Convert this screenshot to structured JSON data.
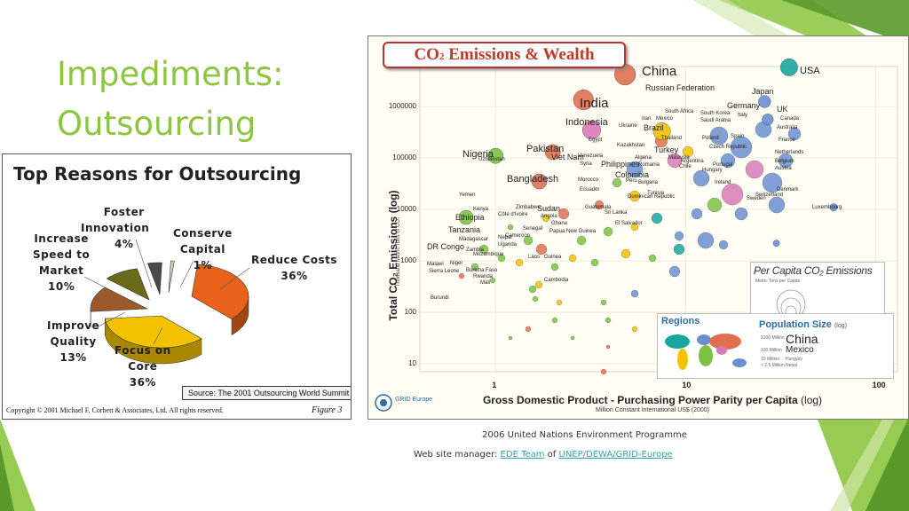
{
  "slide": {
    "title_lines": [
      "Impediments:",
      "Outsourcing"
    ],
    "accent_color": "#8cc63f",
    "accent_dark": "#5a9a2a"
  },
  "pie_figure": {
    "title": "Top Reasons for Outsourcing",
    "source": "Source: The 2001 Outsourcing World Summit",
    "copyright": "Copyright © 2001 Michael F. Corbett & Associates, Ltd.  All rights reserved.",
    "figure_label": "Figure 3",
    "chart_data": {
      "type": "pie",
      "title": "Top Reasons for Outsourcing",
      "slices": [
        {
          "label": "Reduce Costs",
          "value": 36,
          "color": "#e8621a"
        },
        {
          "label": "Focus on Core",
          "value": 36,
          "color": "#f2c200"
        },
        {
          "label": "Improve Quality",
          "value": 13,
          "color": "#9a5a2a"
        },
        {
          "label": "Increase Speed to Market",
          "value": 10,
          "color": "#6b6a18"
        },
        {
          "label": "Foster Innovation",
          "value": 4,
          "color": "#4a4a4a"
        },
        {
          "label": "Conserve Capital",
          "value": 1,
          "color": "#d9d0b8"
        }
      ]
    },
    "labels": {
      "foster": [
        "Foster",
        "Innovation",
        "4%"
      ],
      "conserve": [
        "Conserve",
        "Capital",
        "1%"
      ],
      "speed": [
        "Increase",
        "Speed to",
        "Market",
        "10%"
      ],
      "reduce": [
        "Reduce Costs",
        "36%"
      ],
      "quality": [
        "Improve",
        "Quality",
        "13%"
      ],
      "focus": [
        "Focus on",
        "Core",
        "36%"
      ]
    }
  },
  "co2_figure": {
    "title_prefix": "CO",
    "title_sub": "2",
    "title_suffix": " Emissions & Wealth",
    "y_axis_title": "Total CO₂ Emissions (log)",
    "y_axis_subtitle": "Thousand Metric Tons of CO₂",
    "x_axis_title": "Gross Domestic Product - Purchasing Power Parity per Capita",
    "x_axis_title_suffix": "(log)",
    "x_axis_subtitle": "Million Constant International US$ (2000)",
    "per_capita_title": "Per Capita CO₂ Emissions",
    "per_capita_sub": "Metric Tons per Capita",
    "regions_title": "Regions",
    "population_title": "Population Size",
    "population_suffix": "(log)",
    "population_labels": [
      "China",
      "Mexico"
    ],
    "population_small": [
      "1300 Million",
      "100 Million",
      "10 Million",
      "< 2.5 Million"
    ],
    "population_small_names": [
      "Hungary",
      "Nepal"
    ],
    "chart_data": {
      "type": "scatter",
      "title": "CO₂ Emissions & Wealth",
      "xlabel": "Gross Domestic Product - Purchasing Power Parity per Capita (log)",
      "ylabel": "Total CO₂ Emissions (log)",
      "x_scale": "log",
      "y_scale": "log",
      "xlim": [
        0.4,
        130
      ],
      "ylim": [
        7,
        6000000
      ],
      "x_ticks": [
        1,
        10,
        100
      ],
      "y_ticks": [
        10,
        100,
        1000,
        10000,
        100000,
        1000000
      ],
      "y_tick_labels": [
        "10",
        "100",
        "1000",
        "10000",
        "100000",
        "1000000"
      ],
      "x_tick_labels": [
        "1",
        "10",
        "100"
      ],
      "grid": true,
      "points": [
        {
          "label": "USA",
          "x": 35,
          "y": 5800000,
          "size": 14,
          "color": "#1aa6a0"
        },
        {
          "label": "China",
          "x": 4.8,
          "y": 4200000,
          "size": 18,
          "color": "#e07050"
        },
        {
          "label": "India",
          "x": 2.9,
          "y": 1350000,
          "size": 17,
          "color": "#e07050"
        },
        {
          "label": "Russian Federation",
          "x": 9.5,
          "y": 1600000,
          "size": 0,
          "color": "#6a8fd0"
        },
        {
          "label": "Japan",
          "x": 26,
          "y": 1250000,
          "size": 9,
          "color": "#6a8fd0"
        },
        {
          "label": "Germany",
          "x": 25,
          "y": 860000,
          "size": 0,
          "color": "#6a8fd0"
        },
        {
          "label": "UK",
          "x": 27,
          "y": 560000,
          "size": 8,
          "color": "#6a8fd0"
        },
        {
          "label": "Canada",
          "x": 29,
          "y": 520000,
          "size": 0,
          "color": "#6a8fd0"
        },
        {
          "label": "Indonesia",
          "x": 3.2,
          "y": 350000,
          "size": 15,
          "color": "#d97ab8"
        },
        {
          "label": "Brazil",
          "x": 7.5,
          "y": 330000,
          "size": 14,
          "color": "#f2c200"
        },
        {
          "label": "Nigeria",
          "x": 1.0,
          "y": 110000,
          "size": 12,
          "color": "#7cc242"
        },
        {
          "label": "Pakistan",
          "x": 2.0,
          "y": 130000,
          "size": 12,
          "color": "#e07050"
        },
        {
          "label": "Bangladesh",
          "x": 1.7,
          "y": 35000,
          "size": 12,
          "color": "#e07050"
        },
        {
          "label": "Ethiopia",
          "x": 0.7,
          "y": 7000,
          "size": 11,
          "color": "#7cc242"
        },
        {
          "label": "Luxembourg",
          "x": 60,
          "y": 11000,
          "size": 4,
          "color": "#6a8fd0"
        },
        {
          "label": "Iceland",
          "x": 30,
          "y": 2200,
          "size": 3,
          "color": "#6a8fd0"
        }
      ]
    },
    "labels": [
      {
        "text": "China",
        "size": "l"
      },
      {
        "text": "USA",
        "size": "m"
      },
      {
        "text": "Russian Federation",
        "size": "s"
      },
      {
        "text": "Japan",
        "size": "s"
      },
      {
        "text": "India",
        "size": "l"
      },
      {
        "text": "Germany",
        "size": "s"
      },
      {
        "text": "UK",
        "size": "s"
      },
      {
        "text": "South Africa",
        "size": "xs"
      },
      {
        "text": "South Korea",
        "size": "xs"
      },
      {
        "text": "Italy",
        "size": "xs"
      },
      {
        "text": "Canada",
        "size": "xs"
      },
      {
        "text": "Saudi Arabia",
        "size": "xs"
      },
      {
        "text": "Iran",
        "size": "xs"
      },
      {
        "text": "Mexico",
        "size": "xs"
      },
      {
        "text": "Indonesia",
        "size": "m"
      },
      {
        "text": "Ukraine",
        "size": "xs"
      },
      {
        "text": "Brazil",
        "size": "s"
      },
      {
        "text": "Spain",
        "size": "xs"
      },
      {
        "text": "Australia",
        "size": "xs"
      },
      {
        "text": "France",
        "size": "xs"
      },
      {
        "text": "Egypt",
        "size": "xs"
      },
      {
        "text": "Thailand",
        "size": "xs"
      },
      {
        "text": "Poland",
        "size": "xs"
      },
      {
        "text": "Netherlands",
        "size": "xs"
      },
      {
        "text": "Kazakhstan",
        "size": "xs"
      },
      {
        "text": "Czech Republic",
        "size": "xs"
      },
      {
        "text": "Belgium",
        "size": "xs"
      },
      {
        "text": "Pakistan",
        "size": "m"
      },
      {
        "text": "Turkey",
        "size": "s"
      },
      {
        "text": "Malaysia",
        "size": "xs"
      },
      {
        "text": "Austria",
        "size": "xs"
      },
      {
        "text": "Nigeria",
        "size": "m"
      },
      {
        "text": "Uzbekistan",
        "size": "xs"
      },
      {
        "text": "Viet Nam",
        "size": "s"
      },
      {
        "text": "Venezuela",
        "size": "xs"
      },
      {
        "text": "Algeria",
        "size": "xs"
      },
      {
        "text": "Argentina",
        "size": "xs"
      },
      {
        "text": "Syria",
        "size": "xs"
      },
      {
        "text": "Philippines",
        "size": "s"
      },
      {
        "text": "Romania",
        "size": "xs"
      },
      {
        "text": "Chile",
        "size": "xs"
      },
      {
        "text": "Hungary",
        "size": "xs"
      },
      {
        "text": "Portugal",
        "size": "xs"
      },
      {
        "text": "Colombia",
        "size": "s"
      },
      {
        "text": "Peru",
        "size": "xs"
      },
      {
        "text": "Bangladesh",
        "size": "m"
      },
      {
        "text": "Morocco",
        "size": "xs"
      },
      {
        "text": "Bulgaria",
        "size": "xs"
      },
      {
        "text": "Ireland",
        "size": "xs"
      },
      {
        "text": "Ecuador",
        "size": "xs"
      },
      {
        "text": "Denmark",
        "size": "xs"
      },
      {
        "text": "Yemen",
        "size": "xs"
      },
      {
        "text": "Dominican Republic",
        "size": "xs"
      },
      {
        "text": "Tunisia",
        "size": "xs"
      },
      {
        "text": "Zimbabwe",
        "size": "xs"
      },
      {
        "text": "Sudan",
        "size": "s"
      },
      {
        "text": "Sweden",
        "size": "xs"
      },
      {
        "text": "Switzerland",
        "size": "xs"
      },
      {
        "text": "Kenya",
        "size": "xs"
      },
      {
        "text": "Côte d'Ivoire",
        "size": "xs"
      },
      {
        "text": "Angola",
        "size": "xs"
      },
      {
        "text": "Guatemala",
        "size": "xs"
      },
      {
        "text": "Sri Lanka",
        "size": "xs"
      },
      {
        "text": "Luxembourg",
        "size": "xs"
      },
      {
        "text": "Ethiopia",
        "size": "s"
      },
      {
        "text": "Ghana",
        "size": "xs"
      },
      {
        "text": "Tanzania",
        "size": "s"
      },
      {
        "text": "Senegal",
        "size": "xs"
      },
      {
        "text": "Cameroon",
        "size": "xs"
      },
      {
        "text": "Papua New Guinea",
        "size": "xs"
      },
      {
        "text": "El Salvador",
        "size": "xs"
      },
      {
        "text": "Madagascar",
        "size": "xs"
      },
      {
        "text": "Nepal",
        "size": "xs"
      },
      {
        "text": "Uganda",
        "size": "xs"
      },
      {
        "text": "DR Congo",
        "size": "s"
      },
      {
        "text": "Zambia",
        "size": "xs"
      },
      {
        "text": "Mozambique",
        "size": "xs"
      },
      {
        "text": "Laos",
        "size": "xs"
      },
      {
        "text": "Guinea",
        "size": "xs"
      },
      {
        "text": "Malawi",
        "size": "xs"
      },
      {
        "text": "Niger",
        "size": "xs"
      },
      {
        "text": "Burkina Faso",
        "size": "xs"
      },
      {
        "text": "Rwanda",
        "size": "xs"
      },
      {
        "text": "Mali",
        "size": "xs"
      },
      {
        "text": "Cambodia",
        "size": "xs"
      },
      {
        "text": "Burundi",
        "size": "xs"
      },
      {
        "text": "Sierra Leone",
        "size": "xs"
      },
      {
        "text": "Iceland",
        "size": "xs"
      }
    ],
    "x_tick_labels": [
      "1",
      "10",
      "100"
    ],
    "y_tick_labels": [
      "10",
      "100",
      "1000",
      "10000",
      "100000",
      "1000000"
    ],
    "unep_label": "GRID Europe"
  },
  "footer": {
    "line1": "2006 United Nations Environment Programme",
    "line2_prefix": "Web site manager: ",
    "link1": "EDE Team",
    "line2_mid": " of ",
    "link2": "UNEP/DEWA/GRID-Europe"
  }
}
